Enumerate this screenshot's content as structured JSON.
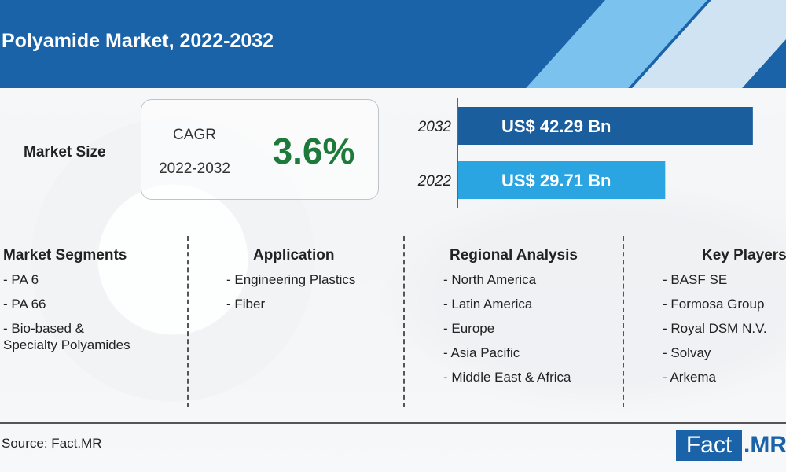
{
  "header": {
    "title": "Polyamide Market, 2022-2032"
  },
  "market_size": {
    "label": "Market Size"
  },
  "cagr": {
    "label": "CAGR",
    "period": "2022-2032",
    "value": "3.6%"
  },
  "chart_data": {
    "type": "bar",
    "orientation": "horizontal",
    "categories": [
      "2032",
      "2022"
    ],
    "values": [
      42.29,
      29.71
    ],
    "data_labels": [
      "US$ 42.29 Bn",
      "US$ 29.71 Bn"
    ],
    "colors": [
      "#1a5e9e",
      "#2aa5e2"
    ],
    "title": "",
    "xlabel": "",
    "ylabel": "",
    "xlim": [
      0,
      44
    ]
  },
  "columns": [
    {
      "title": "Market Segments",
      "items": [
        "- PA 6",
        "- PA 66",
        "- Bio-based &\n  Specialty Polyamides"
      ]
    },
    {
      "title": "Application",
      "items": [
        "- Engineering Plastics",
        "- Fiber"
      ]
    },
    {
      "title": "Regional Analysis",
      "items": [
        "- North America",
        "- Latin America",
        "- Europe",
        "- Asia Pacific",
        "- Middle East & Africa"
      ]
    },
    {
      "title": "Key Players",
      "items": [
        "- BASF SE",
        "- Formosa Group",
        "- Royal DSM N.V.",
        "- Solvay",
        "- Arkema"
      ]
    }
  ],
  "footer": {
    "source": "Source: Fact.MR",
    "logo_left": "Fact",
    "logo_right": ".MR"
  },
  "colors": {
    "header": "#1a63a8",
    "accent_light": "#7bc2ee",
    "cagr_green": "#1e7a3a"
  }
}
